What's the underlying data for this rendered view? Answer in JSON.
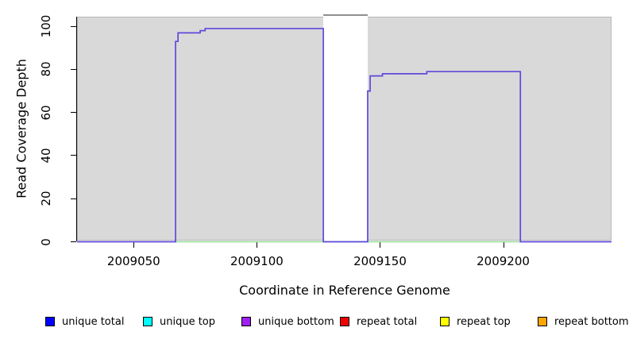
{
  "figure": {
    "xlabel": "Coordinate in Reference Genome",
    "ylabel": "Read Coverage Depth"
  },
  "legend": {
    "items": [
      {
        "label": "unique total",
        "color": "#0000ff"
      },
      {
        "label": "unique top",
        "color": "#00ffff"
      },
      {
        "label": "unique bottom",
        "color": "#a020f0"
      },
      {
        "label": "repeat total",
        "color": "#ee0000"
      },
      {
        "label": "repeat top",
        "color": "#ffff00"
      },
      {
        "label": "repeat bottom",
        "color": "#ffa500"
      }
    ]
  },
  "chart_data": {
    "type": "line",
    "title": "",
    "xlabel": "Coordinate in Reference Genome",
    "ylabel": "Read Coverage Depth",
    "xlim": [
      2009027,
      2009244
    ],
    "ylim": [
      0,
      104.5
    ],
    "x_ticks": [
      2009050,
      2009100,
      2009150,
      2009200
    ],
    "y_ticks": [
      0,
      20,
      40,
      60,
      80,
      100
    ],
    "plot_background_color": "#d9d9d9",
    "plot_border_color": "#b9b9b9",
    "gap_region": {
      "x_start": 2009127,
      "x_end": 2009145,
      "fill": "#ffffff",
      "top_border_color": "#8f8f8f"
    },
    "series": [
      {
        "name": "coverage baseline (top strand)",
        "color": "#95db95",
        "points": [
          [
            2009067,
            0
          ],
          [
            2009207,
            0
          ]
        ]
      },
      {
        "name": "unique bottom coverage",
        "color": "#5e49dc",
        "points": [
          [
            2009027,
            0
          ],
          [
            2009067,
            0
          ],
          [
            2009067,
            93
          ],
          [
            2009068,
            93
          ],
          [
            2009068,
            97
          ],
          [
            2009077,
            97
          ],
          [
            2009077,
            98
          ],
          [
            2009079,
            98
          ],
          [
            2009079,
            99
          ],
          [
            2009127,
            99
          ],
          [
            2009127,
            0
          ],
          [
            2009145,
            0
          ],
          [
            2009145,
            70
          ],
          [
            2009146,
            70
          ],
          [
            2009146,
            77
          ],
          [
            2009151,
            77
          ],
          [
            2009151,
            78
          ],
          [
            2009169,
            78
          ],
          [
            2009169,
            79
          ],
          [
            2009207,
            79
          ],
          [
            2009207,
            0
          ],
          [
            2009244,
            0
          ]
        ]
      }
    ],
    "clipped_segment": {
      "x_start": 2009127,
      "x_end": 2009145,
      "note": "coverage exceeds y-axis maximum inside gap band",
      "color": "#8f8f8f"
    },
    "legend_entries": [
      "unique total",
      "unique top",
      "unique bottom",
      "repeat total",
      "repeat top",
      "repeat bottom"
    ],
    "legend_position": "bottom",
    "grid": false
  }
}
